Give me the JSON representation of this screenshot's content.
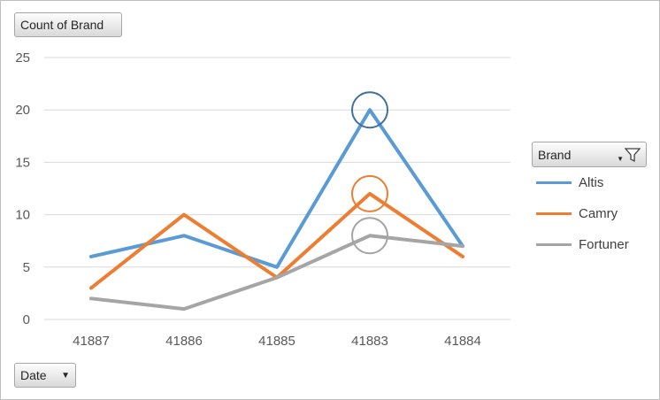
{
  "field_buttons": {
    "value": "Count of Brand",
    "axis": "Date",
    "legend": "Brand"
  },
  "icons": {
    "axis_dropdown": "dropdown-arrow-icon",
    "legend_filter": "filter-funnel-icon"
  },
  "chart_data": {
    "type": "line",
    "categories": [
      "41887",
      "41886",
      "41885",
      "41883",
      "41884"
    ],
    "series": [
      {
        "name": "Altis",
        "values": [
          6,
          8,
          5,
          20,
          7
        ],
        "color": "#5b9bd5"
      },
      {
        "name": "Camry",
        "values": [
          3,
          10,
          4,
          12,
          6
        ],
        "color": "#ed7d31"
      },
      {
        "name": "Fortuner",
        "values": [
          2,
          1,
          4,
          8,
          7
        ],
        "color": "#a5a5a5"
      }
    ],
    "ylim": [
      0,
      25
    ],
    "yticks": [
      0,
      5,
      10,
      15,
      20,
      25
    ],
    "grid": true,
    "legend_position": "right",
    "highlighted_category": "41883",
    "highlight_outline_colors": [
      "#41719c",
      "#ed7d31",
      "#a5a5a5"
    ]
  }
}
